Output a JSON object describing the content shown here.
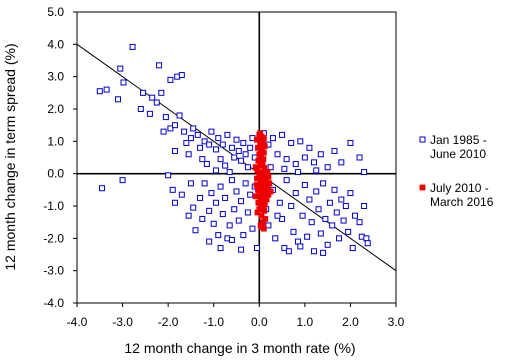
{
  "chart_data": {
    "type": "scatter",
    "title": "",
    "xlabel": "12 month change in 3 month rate (%)",
    "ylabel": "12 month change in term spread (%)",
    "xlim": [
      -4.0,
      3.0
    ],
    "ylim": [
      -4.0,
      5.0
    ],
    "x_ticks": [
      "-4.0",
      "-3.0",
      "-2.0",
      "-1.0",
      "0.0",
      "1.0",
      "2.0",
      "3.0"
    ],
    "y_ticks": [
      "5.0",
      "4.0",
      "3.0",
      "2.0",
      "1.0",
      "0.0",
      "-1.0",
      "-2.0",
      "-3.0",
      "-4.0"
    ],
    "x_tick_values": [
      -4,
      -3,
      -2,
      -1,
      0,
      1,
      2,
      3
    ],
    "y_tick_values": [
      5,
      4,
      3,
      2,
      1,
      0,
      -1,
      -2,
      -3,
      -4
    ],
    "grid": false,
    "legend_position": "right",
    "reference_line": {
      "slope": -1,
      "intercept": 0
    },
    "series": [
      {
        "name": "Jan 1985 - June 2010",
        "legend_lines": [
          "Jan 1985 -",
          "June 2010"
        ],
        "marker": "hollow-square",
        "color": "#0000cc",
        "points": [
          [
            -3.45,
            -0.45
          ],
          [
            -3.0,
            -0.2
          ],
          [
            -2.55,
            2.5
          ],
          [
            -2.0,
            -0.05
          ],
          [
            -3.5,
            2.55
          ],
          [
            -3.35,
            2.6
          ],
          [
            -3.1,
            2.3
          ],
          [
            -3.05,
            3.25
          ],
          [
            -2.98,
            2.82
          ],
          [
            -2.78,
            3.92
          ],
          [
            -2.6,
            2.0
          ],
          [
            -2.4,
            1.85
          ],
          [
            -2.35,
            2.35
          ],
          [
            -2.25,
            2.2
          ],
          [
            -2.2,
            3.35
          ],
          [
            -2.15,
            2.5
          ],
          [
            -1.95,
            2.9
          ],
          [
            -1.8,
            3.0
          ],
          [
            -1.7,
            3.05
          ],
          [
            -2.05,
            1.75
          ],
          [
            -1.95,
            1.4
          ],
          [
            -1.85,
            1.5
          ],
          [
            -1.75,
            1.8
          ],
          [
            -1.65,
            1.3
          ],
          [
            -1.6,
            0.95
          ],
          [
            -1.5,
            1.1
          ],
          [
            -1.45,
            1.4
          ],
          [
            -1.35,
            1.2
          ],
          [
            -1.3,
            0.8
          ],
          [
            -1.2,
            1.0
          ],
          [
            -1.1,
            0.9
          ],
          [
            -1.05,
            1.3
          ],
          [
            -0.95,
            0.75
          ],
          [
            -0.9,
            1.1
          ],
          [
            -0.85,
            0.45
          ],
          [
            -0.8,
            0.9
          ],
          [
            -0.7,
            1.2
          ],
          [
            -0.6,
            0.8
          ],
          [
            -0.55,
            0.5
          ],
          [
            -0.5,
            1.05
          ],
          [
            -0.45,
            0.7
          ],
          [
            -0.4,
            0.4
          ],
          [
            -0.35,
            0.95
          ],
          [
            -0.3,
            0.6
          ],
          [
            -0.25,
            0.2
          ],
          [
            -0.2,
            0.8
          ],
          [
            -0.15,
            1.1
          ],
          [
            -0.1,
            0.5
          ],
          [
            -2.1,
            1.3
          ],
          [
            -1.85,
            0.7
          ],
          [
            -1.55,
            0.6
          ],
          [
            -1.25,
            0.45
          ],
          [
            -1.15,
            0.3
          ],
          [
            -0.95,
            0.1
          ],
          [
            -0.75,
            0.25
          ],
          [
            -0.65,
            0.05
          ],
          [
            -1.9,
            -0.5
          ],
          [
            -1.85,
            -0.9
          ],
          [
            -1.7,
            -0.65
          ],
          [
            -1.5,
            -0.3
          ],
          [
            -1.45,
            -1.05
          ],
          [
            -1.3,
            -0.75
          ],
          [
            -1.25,
            -1.4
          ],
          [
            -1.2,
            -0.3
          ],
          [
            -1.1,
            -1.15
          ],
          [
            -1.05,
            -0.6
          ],
          [
            -1.0,
            -1.55
          ],
          [
            -0.95,
            -0.9
          ],
          [
            -0.9,
            -1.9
          ],
          [
            -0.85,
            -0.4
          ],
          [
            -0.8,
            -1.25
          ],
          [
            -0.75,
            -0.75
          ],
          [
            -0.7,
            -2.0
          ],
          [
            -0.65,
            -1.6
          ],
          [
            -0.6,
            -0.2
          ],
          [
            -0.55,
            -1.1
          ],
          [
            -0.5,
            -0.55
          ],
          [
            -0.45,
            -1.45
          ],
          [
            -0.4,
            -0.85
          ],
          [
            -0.35,
            -1.9
          ],
          [
            -0.3,
            -0.3
          ],
          [
            -0.25,
            -1.2
          ],
          [
            -0.2,
            -0.65
          ],
          [
            -0.15,
            -1.7
          ],
          [
            -0.1,
            -0.4
          ],
          [
            -0.05,
            -2.3
          ],
          [
            -1.4,
            -1.75
          ],
          [
            -1.1,
            -2.1
          ],
          [
            -0.85,
            -2.3
          ],
          [
            -0.6,
            -2.05
          ],
          [
            -0.4,
            -2.35
          ],
          [
            -1.55,
            -1.3
          ],
          [
            0.1,
            1.25
          ],
          [
            0.2,
            0.9
          ],
          [
            0.3,
            1.1
          ],
          [
            0.4,
            0.6
          ],
          [
            0.5,
            1.2
          ],
          [
            0.6,
            0.45
          ],
          [
            0.7,
            0.95
          ],
          [
            0.8,
            0.3
          ],
          [
            0.9,
            1.0
          ],
          [
            1.0,
            0.5
          ],
          [
            1.1,
            0.8
          ],
          [
            1.2,
            0.35
          ],
          [
            1.35,
            0.6
          ],
          [
            1.5,
            0.2
          ],
          [
            1.65,
            0.7
          ],
          [
            1.8,
            0.35
          ],
          [
            2.0,
            0.95
          ],
          [
            2.2,
            0.5
          ],
          [
            2.3,
            0.05
          ],
          [
            0.25,
            0.2
          ],
          [
            0.55,
            0.15
          ],
          [
            0.85,
            0.05
          ],
          [
            1.25,
            0.1
          ],
          [
            0.1,
            -0.3
          ],
          [
            0.15,
            -1.1
          ],
          [
            0.2,
            -1.6
          ],
          [
            0.3,
            -0.5
          ],
          [
            0.35,
            -2.0
          ],
          [
            0.45,
            -0.9
          ],
          [
            0.5,
            -1.4
          ],
          [
            0.55,
            -2.3
          ],
          [
            0.6,
            -0.2
          ],
          [
            0.7,
            -1.0
          ],
          [
            0.75,
            -1.8
          ],
          [
            0.8,
            -0.6
          ],
          [
            0.85,
            -2.1
          ],
          [
            0.95,
            -1.3
          ],
          [
            1.0,
            -0.35
          ],
          [
            1.05,
            -1.95
          ],
          [
            1.1,
            -0.8
          ],
          [
            1.15,
            -1.5
          ],
          [
            1.2,
            -2.4
          ],
          [
            1.25,
            -0.55
          ],
          [
            1.3,
            -1.1
          ],
          [
            1.35,
            -1.85
          ],
          [
            1.4,
            -0.3
          ],
          [
            1.45,
            -1.4
          ],
          [
            1.5,
            -2.2
          ],
          [
            1.55,
            -0.9
          ],
          [
            1.6,
            -1.6
          ],
          [
            1.65,
            -0.5
          ],
          [
            1.7,
            -1.2
          ],
          [
            1.75,
            -2.0
          ],
          [
            1.8,
            -0.8
          ],
          [
            1.85,
            -1.45
          ],
          [
            1.9,
            -1.0
          ],
          [
            1.95,
            -1.8
          ],
          [
            2.0,
            -0.6
          ],
          [
            2.05,
            -2.3
          ],
          [
            2.1,
            -1.3
          ],
          [
            2.2,
            -1.5
          ],
          [
            2.25,
            -1.95
          ],
          [
            2.35,
            -2.0
          ],
          [
            2.38,
            -2.15
          ],
          [
            2.3,
            -1.0
          ],
          [
            1.4,
            -2.45
          ],
          [
            0.9,
            -2.25
          ],
          [
            0.65,
            -2.4
          ],
          [
            0.4,
            -1.3
          ]
        ]
      },
      {
        "name": "July 2010 - March 2016",
        "legend_lines": [
          "July 2010 -",
          "March 2016"
        ],
        "marker": "filled-square",
        "color": "#ee0000",
        "points": [
          [
            0.0,
            1.2
          ],
          [
            0.05,
            1.15
          ],
          [
            0.1,
            1.1
          ],
          [
            -0.05,
            1.05
          ],
          [
            0.08,
            0.98
          ],
          [
            0.02,
            0.9
          ],
          [
            0.12,
            0.85
          ],
          [
            -0.03,
            0.8
          ],
          [
            0.06,
            0.72
          ],
          [
            0.1,
            0.65
          ],
          [
            0.0,
            0.6
          ],
          [
            0.04,
            0.52
          ],
          [
            0.09,
            0.45
          ],
          [
            -0.02,
            0.4
          ],
          [
            0.07,
            0.32
          ],
          [
            0.02,
            0.25
          ],
          [
            0.11,
            0.18
          ],
          [
            -0.04,
            0.1
          ],
          [
            0.05,
            0.04
          ],
          [
            0.1,
            -0.02
          ],
          [
            0.0,
            -0.08
          ],
          [
            0.15,
            -0.12
          ],
          [
            0.2,
            -0.1
          ],
          [
            -0.05,
            -0.15
          ],
          [
            0.08,
            -0.2
          ],
          [
            0.12,
            -0.25
          ],
          [
            0.03,
            -0.3
          ],
          [
            -0.06,
            -0.35
          ],
          [
            0.1,
            -0.38
          ],
          [
            0.18,
            -0.4
          ],
          [
            0.05,
            -0.45
          ],
          [
            -0.03,
            -0.5
          ],
          [
            0.14,
            -0.52
          ],
          [
            0.07,
            -0.58
          ],
          [
            0.0,
            -0.62
          ],
          [
            0.2,
            -0.65
          ],
          [
            0.1,
            -0.7
          ],
          [
            0.03,
            -0.75
          ],
          [
            0.16,
            -0.8
          ],
          [
            0.06,
            -0.85
          ],
          [
            -0.02,
            -0.9
          ],
          [
            0.12,
            -0.95
          ],
          [
            0.04,
            -1.0
          ],
          [
            0.09,
            -1.05
          ],
          [
            0.0,
            -1.1
          ],
          [
            0.11,
            -1.15
          ],
          [
            0.05,
            -1.3
          ],
          [
            0.08,
            -1.5
          ],
          [
            0.03,
            -1.6
          ],
          [
            0.1,
            -1.7
          ],
          [
            0.06,
            -1.65
          ],
          [
            -0.04,
            -1.2
          ],
          [
            -0.08,
            -0.7
          ],
          [
            0.25,
            -0.55
          ],
          [
            0.22,
            -0.3
          ],
          [
            0.18,
            0.05
          ],
          [
            -0.08,
            0.2
          ],
          [
            0.13,
            -1.4
          ],
          [
            0.02,
            1.25
          ],
          [
            0.07,
            -0.15
          ]
        ]
      }
    ]
  }
}
